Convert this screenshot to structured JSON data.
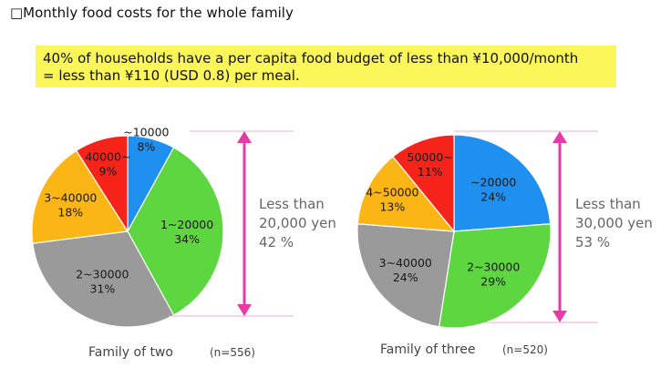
{
  "title": "□Monthly food costs for the whole family",
  "highlight": {
    "line1": "40% of households have a per capita food budget of less than ¥10,000/month",
    "line2": "= less than ¥110 (USD 0.8) per meal."
  },
  "chart_data": [
    {
      "type": "pie",
      "caption": "Family of two",
      "n": "(n=556)",
      "slices": [
        {
          "label": "~10000",
          "value": 8,
          "display": "8%",
          "color": "#1f8ff0"
        },
        {
          "label": "1~20000",
          "value": 34,
          "display": "34%",
          "color": "#5dd63f"
        },
        {
          "label": "2~30000",
          "value": 31,
          "display": "31%",
          "color": "#9a9a9a"
        },
        {
          "label": "3~40000",
          "value": 18,
          "display": "18%",
          "color": "#fbb615"
        },
        {
          "label": "40000~",
          "value": 9,
          "display": "9%",
          "color": "#f5231a"
        }
      ],
      "bracket_text": [
        "Less than",
        "20,000 yen",
        "42 %"
      ]
    },
    {
      "type": "pie",
      "caption": "Family of three",
      "n": "(n=520)",
      "slices": [
        {
          "label": "~20000",
          "value": 24,
          "display": "24%",
          "color": "#1f8ff0"
        },
        {
          "label": "2~30000",
          "value": 29,
          "display": "29%",
          "color": "#5dd63f"
        },
        {
          "label": "3~40000",
          "value": 24,
          "display": "24%",
          "color": "#9a9a9a"
        },
        {
          "label": "4~50000",
          "value": 13,
          "display": "13%",
          "color": "#fbb615"
        },
        {
          "label": "50000~",
          "value": 11,
          "display": "11%",
          "color": "#f5231a"
        }
      ],
      "bracket_text": [
        "Less than",
        "30,000 yen",
        "53 %"
      ]
    }
  ],
  "colors": {
    "bracket": "#e83aa7",
    "highlight": "#fbf65a"
  }
}
